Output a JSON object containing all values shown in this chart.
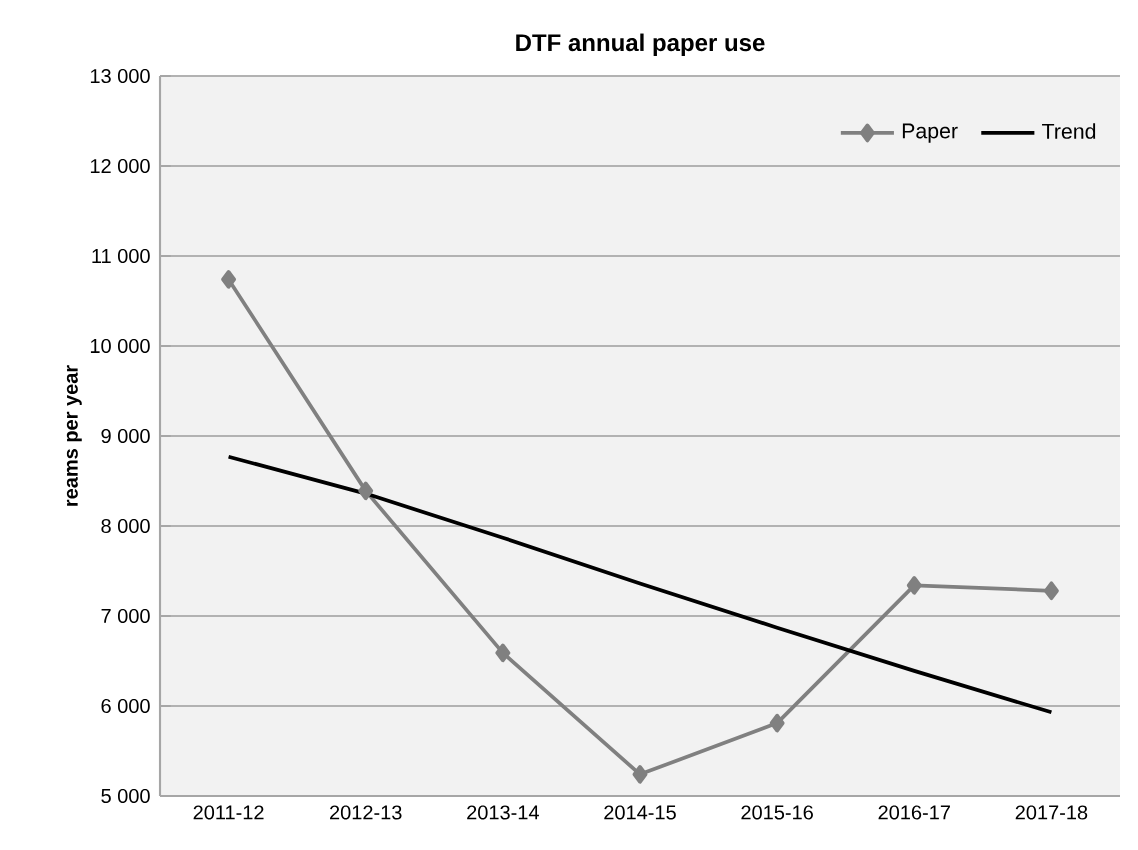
{
  "chart_data": {
    "type": "line",
    "title": "DTF annual paper use",
    "ylabel": "reams per year",
    "categories": [
      "2011-12",
      "2012-13",
      "2013-14",
      "2014-15",
      "2015-16",
      "2016-17",
      "2017-18"
    ],
    "series": [
      {
        "name": "Paper",
        "color": "#808080",
        "marker": "diamond",
        "values": [
          10740,
          8390,
          6590,
          5240,
          5810,
          7340,
          7280
        ]
      },
      {
        "name": "Trend",
        "color": "#000000",
        "marker": "none",
        "values": [
          8770,
          8360,
          7870,
          7360,
          6870,
          6390,
          5930
        ]
      }
    ],
    "ylim": [
      5000,
      13000
    ],
    "yticks": [
      {
        "value": 5000,
        "label": "5 000"
      },
      {
        "value": 6000,
        "label": "6 000"
      },
      {
        "value": 7000,
        "label": "7 000"
      },
      {
        "value": 8000,
        "label": "8 000"
      },
      {
        "value": 9000,
        "label": "9 000"
      },
      {
        "value": 10000,
        "label": "10 000"
      },
      {
        "value": 11000,
        "label": "11 000"
      },
      {
        "value": 12000,
        "label": "12 000"
      },
      {
        "value": 13000,
        "label": "13 000"
      }
    ],
    "grid": "y",
    "legend": "top right"
  }
}
